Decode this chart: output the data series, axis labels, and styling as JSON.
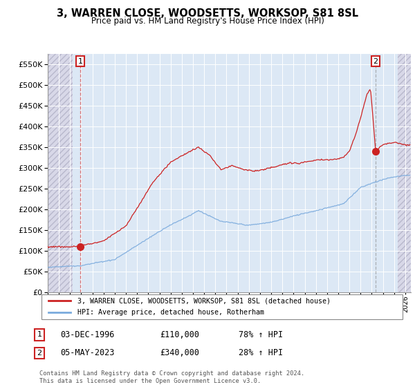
{
  "title": "3, WARREN CLOSE, WOODSETTS, WORKSOP, S81 8SL",
  "subtitle": "Price paid vs. HM Land Registry's House Price Index (HPI)",
  "legend_line1": "3, WARREN CLOSE, WOODSETTS, WORKSOP, S81 8SL (detached house)",
  "legend_line2": "HPI: Average price, detached house, Rotherham",
  "sale1_label": "1",
  "sale1_date": "03-DEC-1996",
  "sale1_price": "£110,000",
  "sale1_hpi": "78% ↑ HPI",
  "sale2_label": "2",
  "sale2_date": "05-MAY-2023",
  "sale2_price": "£340,000",
  "sale2_hpi": "28% ↑ HPI",
  "footer": "Contains HM Land Registry data © Crown copyright and database right 2024.\nThis data is licensed under the Open Government Licence v3.0.",
  "hpi_color": "#7aaadd",
  "price_color": "#cc2222",
  "background_color": "#ffffff",
  "plot_bg_color": "#dce8f5",
  "grid_color": "#ffffff",
  "hatch_bg_color": "#d8d8e8",
  "ylim": [
    0,
    575000
  ],
  "yticks": [
    0,
    50000,
    100000,
    150000,
    200000,
    250000,
    300000,
    350000,
    400000,
    450000,
    500000,
    550000
  ],
  "sale1_x": 1996.92,
  "sale1_y": 110000,
  "sale2_x": 2023.35,
  "sale2_y": 340000,
  "xmin": 1994.0,
  "xmax": 2026.5,
  "marker_size": 7
}
